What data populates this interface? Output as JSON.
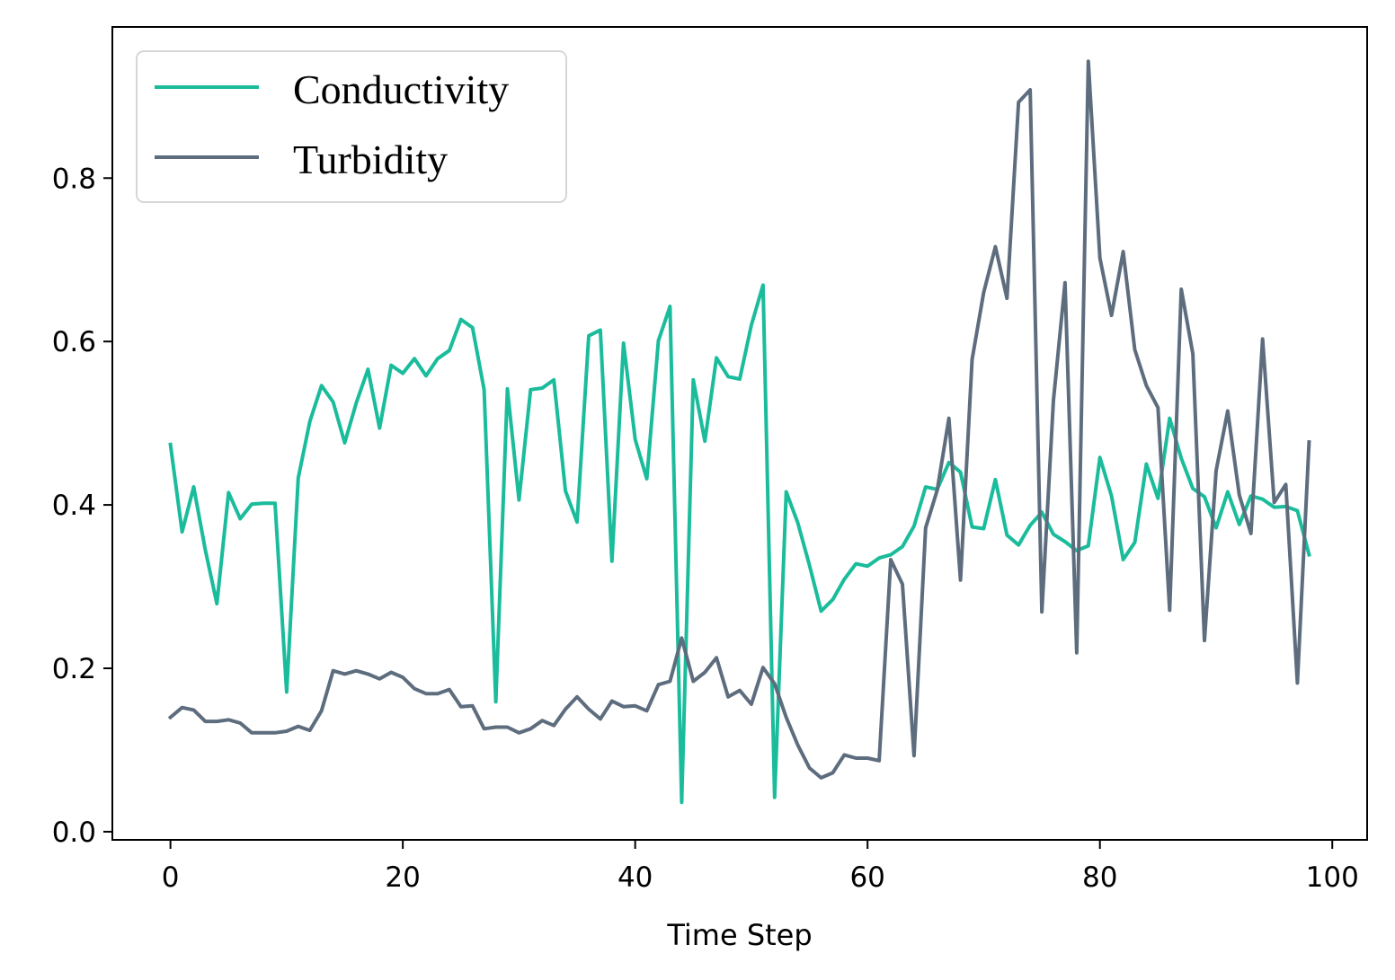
{
  "chart_data": {
    "type": "line",
    "title": "",
    "xlabel": "Time Step",
    "ylabel": "",
    "xlim": [
      -5,
      103
    ],
    "ylim": [
      -0.01,
      0.985
    ],
    "x_ticks": [
      0,
      20,
      40,
      60,
      80,
      100
    ],
    "y_ticks": [
      0.0,
      0.2,
      0.4,
      0.6,
      0.8
    ],
    "x_tick_labels": [
      "0",
      "20",
      "40",
      "60",
      "80",
      "100"
    ],
    "y_tick_labels": [
      "0.0",
      "0.2",
      "0.4",
      "0.6",
      "0.8"
    ],
    "grid": false,
    "legend_position": "top-left",
    "series": [
      {
        "name": "Conductivity",
        "color": "#1abc9c",
        "values": [
          0.474,
          0.367,
          0.422,
          0.345,
          0.279,
          0.415,
          0.383,
          0.401,
          0.402,
          0.402,
          0.171,
          0.433,
          0.502,
          0.546,
          0.526,
          0.476,
          0.525,
          0.566,
          0.494,
          0.571,
          0.561,
          0.579,
          0.558,
          0.579,
          0.589,
          0.627,
          0.617,
          0.541,
          0.159,
          0.542,
          0.406,
          0.541,
          0.543,
          0.553,
          0.417,
          0.379,
          0.607,
          0.614,
          0.331,
          0.598,
          0.48,
          0.432,
          0.601,
          0.643,
          0.036,
          0.553,
          0.478,
          0.58,
          0.557,
          0.554,
          0.62,
          0.669,
          0.042,
          0.416,
          0.378,
          0.326,
          0.27,
          0.284,
          0.309,
          0.328,
          0.325,
          0.335,
          0.339,
          0.349,
          0.374,
          0.422,
          0.419,
          0.452,
          0.44,
          0.373,
          0.371,
          0.431,
          0.363,
          0.351,
          0.375,
          0.391,
          0.364,
          0.355,
          0.344,
          0.35,
          0.458,
          0.411,
          0.333,
          0.354,
          0.45,
          0.408,
          0.506,
          0.457,
          0.42,
          0.41,
          0.372,
          0.416,
          0.376,
          0.411,
          0.407,
          0.397,
          0.398,
          0.393,
          0.339
        ]
      },
      {
        "name": "Turbidity",
        "color": "#5d6d7e",
        "values": [
          0.14,
          0.152,
          0.149,
          0.135,
          0.135,
          0.137,
          0.133,
          0.121,
          0.121,
          0.121,
          0.123,
          0.129,
          0.124,
          0.148,
          0.197,
          0.193,
          0.197,
          0.193,
          0.187,
          0.195,
          0.189,
          0.175,
          0.169,
          0.169,
          0.174,
          0.153,
          0.154,
          0.126,
          0.128,
          0.128,
          0.121,
          0.126,
          0.136,
          0.13,
          0.15,
          0.165,
          0.15,
          0.138,
          0.16,
          0.153,
          0.154,
          0.148,
          0.18,
          0.184,
          0.237,
          0.184,
          0.195,
          0.213,
          0.165,
          0.173,
          0.156,
          0.201,
          0.181,
          0.14,
          0.106,
          0.078,
          0.066,
          0.072,
          0.094,
          0.09,
          0.09,
          0.087,
          0.333,
          0.303,
          0.093,
          0.372,
          0.418,
          0.506,
          0.308,
          0.578,
          0.66,
          0.716,
          0.653,
          0.893,
          0.908,
          0.269,
          0.528,
          0.672,
          0.219,
          0.943,
          0.702,
          0.632,
          0.71,
          0.59,
          0.546,
          0.519,
          0.271,
          0.664,
          0.585,
          0.234,
          0.442,
          0.515,
          0.412,
          0.365,
          0.603,
          0.403,
          0.425,
          0.182,
          0.477
        ]
      }
    ]
  }
}
